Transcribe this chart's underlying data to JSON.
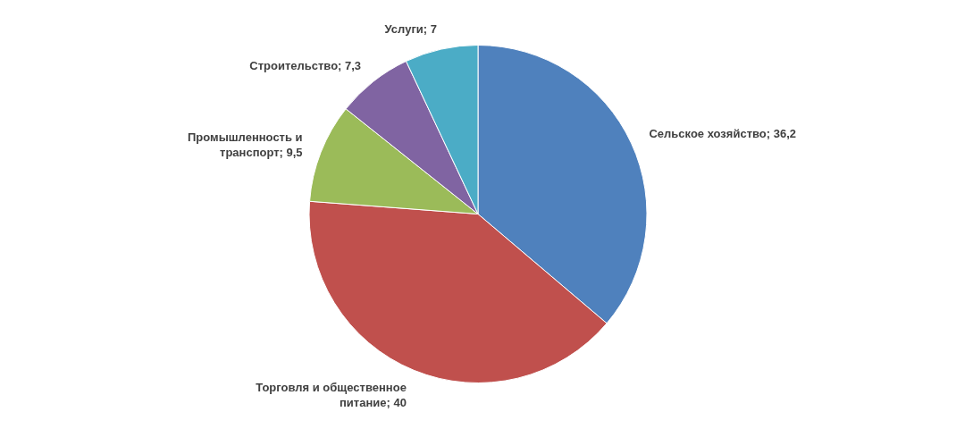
{
  "chart_data": {
    "type": "pie",
    "categories": [
      "Сельское хозяйство",
      "Торговля и общественное питание",
      "Промышленность и транспорт",
      "Строительство",
      "Услуги"
    ],
    "values": [
      36.2,
      40,
      9.5,
      7.3,
      7
    ],
    "value_labels": [
      "36,2",
      "40",
      "9,5",
      "7,3",
      "7"
    ],
    "colors": [
      "#4f81bd",
      "#c0504d",
      "#9bbb59",
      "#8064a2",
      "#4bacc6"
    ]
  }
}
